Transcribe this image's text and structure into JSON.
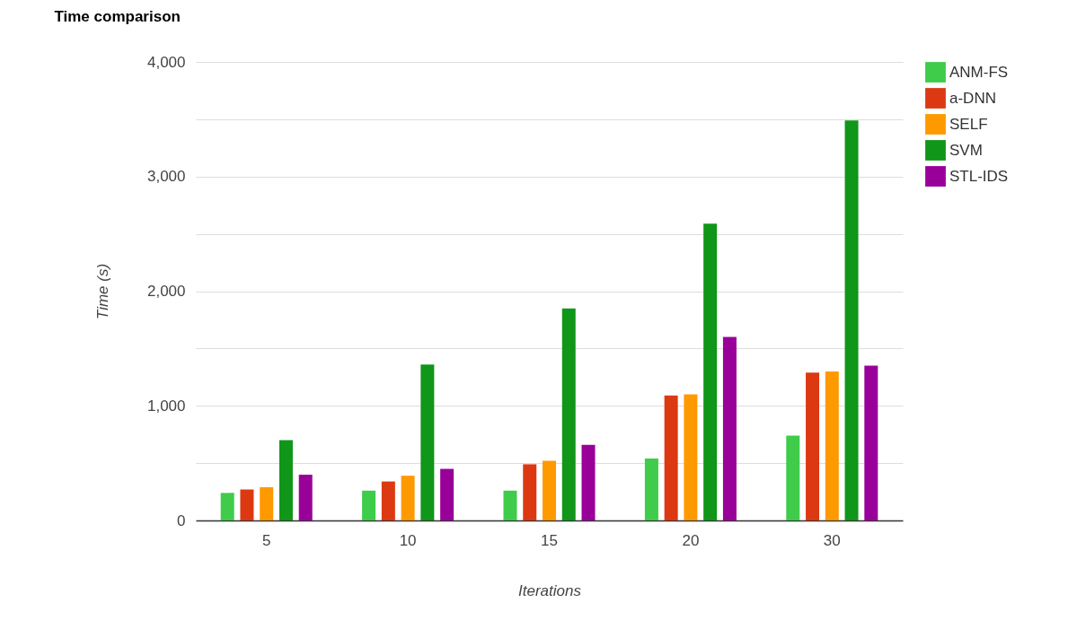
{
  "chart_data": {
    "type": "bar",
    "title": "Time comparison",
    "xlabel": "Iterations",
    "ylabel": "Time (s)",
    "categories": [
      "5",
      "10",
      "15",
      "20",
      "30"
    ],
    "series": [
      {
        "name": "ANM-FS",
        "color": "#3ecc4a",
        "values": [
          240,
          260,
          260,
          540,
          740
        ]
      },
      {
        "name": "a-DNN",
        "color": "#dc3912",
        "values": [
          270,
          340,
          490,
          1090,
          1290
        ]
      },
      {
        "name": "SELF",
        "color": "#ff9900",
        "values": [
          290,
          390,
          520,
          1100,
          1300
        ]
      },
      {
        "name": "SVM",
        "color": "#109618",
        "values": [
          700,
          1360,
          1850,
          2590,
          3490
        ]
      },
      {
        "name": "STL-IDS",
        "color": "#990099",
        "values": [
          400,
          450,
          660,
          1600,
          1350
        ]
      }
    ],
    "ylim": [
      0,
      4000
    ],
    "yticks": [
      0,
      {
        "value": 500,
        "label": null
      },
      {
        "value": 1000,
        "label": "1,000"
      },
      {
        "value": 1500,
        "label": null
      },
      {
        "value": 2000,
        "label": "2,000"
      },
      {
        "value": 2500,
        "label": null
      },
      {
        "value": 3000,
        "label": "3,000"
      },
      {
        "value": 3500,
        "label": null
      },
      {
        "value": 4000,
        "label": "4,000"
      }
    ],
    "grid": true,
    "legend": "top right"
  }
}
